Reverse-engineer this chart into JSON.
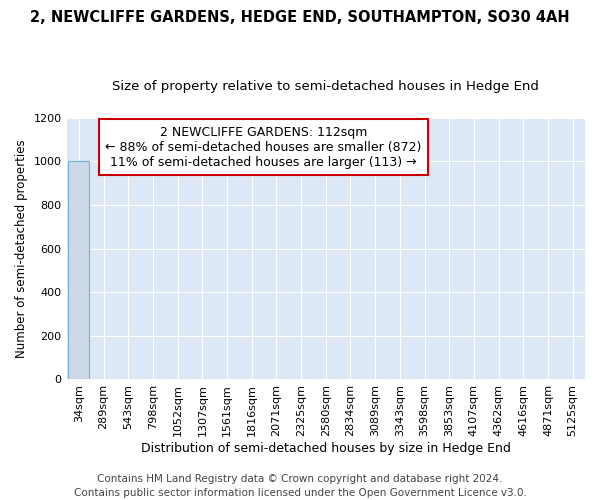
{
  "title": "2, NEWCLIFFE GARDENS, HEDGE END, SOUTHAMPTON, SO30 4AH",
  "subtitle": "Size of property relative to semi-detached houses in Hedge End",
  "xlabel": "Distribution of semi-detached houses by size in Hedge End",
  "ylabel": "Number of semi-detached properties",
  "categories": [
    "34sqm",
    "289sqm",
    "543sqm",
    "798sqm",
    "1052sqm",
    "1307sqm",
    "1561sqm",
    "1816sqm",
    "2071sqm",
    "2325sqm",
    "2580sqm",
    "2834sqm",
    "3089sqm",
    "3343sqm",
    "3598sqm",
    "3853sqm",
    "4107sqm",
    "4362sqm",
    "4616sqm",
    "4871sqm",
    "5125sqm"
  ],
  "values": [
    1000,
    0,
    0,
    0,
    0,
    0,
    0,
    0,
    0,
    0,
    0,
    0,
    0,
    0,
    0,
    0,
    0,
    0,
    0,
    0,
    0
  ],
  "bar_color": "#ccd9e8",
  "bar_edgecolor": "#7aafd4",
  "annotation_text": "2 NEWCLIFFE GARDENS: 112sqm\n← 88% of semi-detached houses are smaller (872)\n11% of semi-detached houses are larger (113) →",
  "annotation_box_facecolor": "#ffffff",
  "annotation_box_edgecolor": "#cc0000",
  "ylim": [
    0,
    1200
  ],
  "yticks": [
    0,
    200,
    400,
    600,
    800,
    1000,
    1200
  ],
  "plot_bg_color": "#dce8f5",
  "fig_bg_color": "#ffffff",
  "grid_color": "#ffffff",
  "footer_line1": "Contains HM Land Registry data © Crown copyright and database right 2024.",
  "footer_line2": "Contains public sector information licensed under the Open Government Licence v3.0.",
  "title_fontsize": 10.5,
  "subtitle_fontsize": 9.5,
  "xlabel_fontsize": 9,
  "ylabel_fontsize": 8.5,
  "tick_fontsize": 8,
  "annotation_fontsize": 9,
  "footer_fontsize": 7.5
}
